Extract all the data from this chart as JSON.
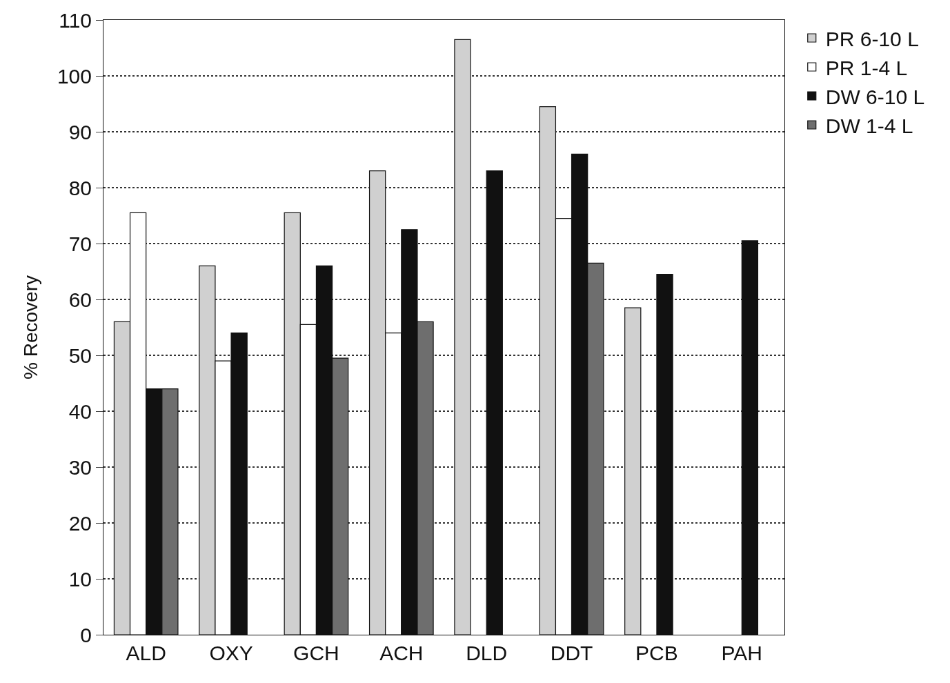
{
  "chart_data": {
    "type": "bar",
    "ylabel": "% Recovery",
    "categories": [
      "ALD",
      "OXY",
      "GCH",
      "ACH",
      "DLD",
      "DDT",
      "PCB",
      "PAH"
    ],
    "series": [
      {
        "name": "PR 6-10 L",
        "color": "#d0d0d0",
        "values": [
          56,
          66,
          75.5,
          83,
          106.5,
          94.5,
          58.5,
          null
        ]
      },
      {
        "name": "PR 1-4 L",
        "color": "#ffffff",
        "values": [
          75.5,
          49,
          55.5,
          54,
          null,
          74.5,
          null,
          null
        ]
      },
      {
        "name": "DW 6-10 L",
        "color": "#111111",
        "values": [
          44,
          54,
          66,
          72.5,
          83,
          86,
          64.5,
          70.5
        ]
      },
      {
        "name": "DW 1-4 L",
        "color": "#6e6e6e",
        "values": [
          44,
          null,
          49.5,
          56,
          null,
          66.5,
          null,
          null
        ]
      }
    ],
    "ylim": [
      0,
      110
    ],
    "yticks": [
      0,
      10,
      20,
      30,
      40,
      50,
      60,
      70,
      80,
      90,
      100,
      110
    ],
    "grid": "y",
    "legend": "top right"
  }
}
